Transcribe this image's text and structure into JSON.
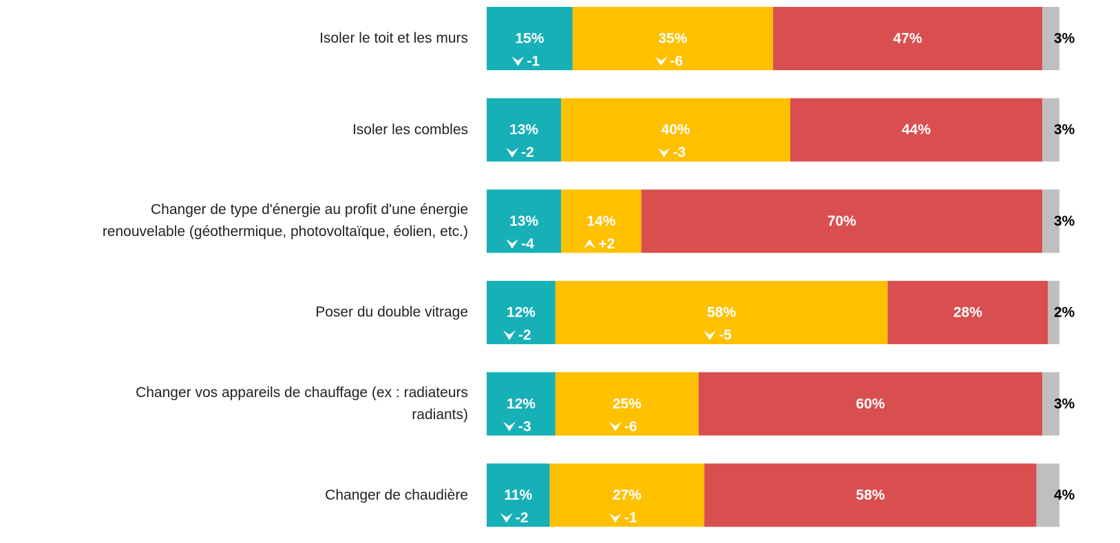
{
  "chart_data": {
    "type": "stacked-barh",
    "categories": [
      "Isoler le toit et les murs",
      "Isoler les combles",
      "Changer de type d'énergie au profit d'une énergie\nrenouvelable (géothermique, photovoltaïque, éolien, etc.)",
      "Poser du double vitrage",
      "Changer vos appareils de chauffage (ex : radiateurs\nradiants)",
      "Changer de chaudière"
    ],
    "xlim": [
      0,
      100
    ],
    "series": [
      {
        "color": "#17b0b6",
        "label_color": "#ffffff",
        "values": [
          15,
          13,
          13,
          12,
          12,
          11
        ],
        "value_labels": [
          "15%",
          "13%",
          "13%",
          "12%",
          "12%",
          "11%"
        ],
        "deltas": [
          -1,
          -2,
          -4,
          -2,
          -3,
          -2
        ],
        "delta_labels": [
          "-1",
          "-2",
          "-4",
          "-2",
          "-3",
          "-2"
        ]
      },
      {
        "color": "#ffc000",
        "label_color": "#ffffff",
        "values": [
          35,
          40,
          14,
          58,
          25,
          27
        ],
        "value_labels": [
          "35%",
          "40%",
          "14%",
          "58%",
          "25%",
          "27%"
        ],
        "deltas": [
          -6,
          -3,
          2,
          -5,
          -6,
          -1
        ],
        "delta_labels": [
          "-6",
          "-3",
          "+2",
          "-5",
          "-6",
          "-1"
        ]
      },
      {
        "color": "#d94f4f",
        "label_color": "#ffffff",
        "values": [
          47,
          44,
          70,
          28,
          60,
          58
        ],
        "value_labels": [
          "47%",
          "44%",
          "70%",
          "28%",
          "60%",
          "58%"
        ]
      },
      {
        "color": "#bfbfbf",
        "label_color": "#000000",
        "label_outside": true,
        "values": [
          3,
          3,
          3,
          2,
          3,
          4
        ],
        "value_labels": [
          "3%",
          "3%",
          "3%",
          "2%",
          "3%",
          "4%"
        ]
      }
    ]
  }
}
